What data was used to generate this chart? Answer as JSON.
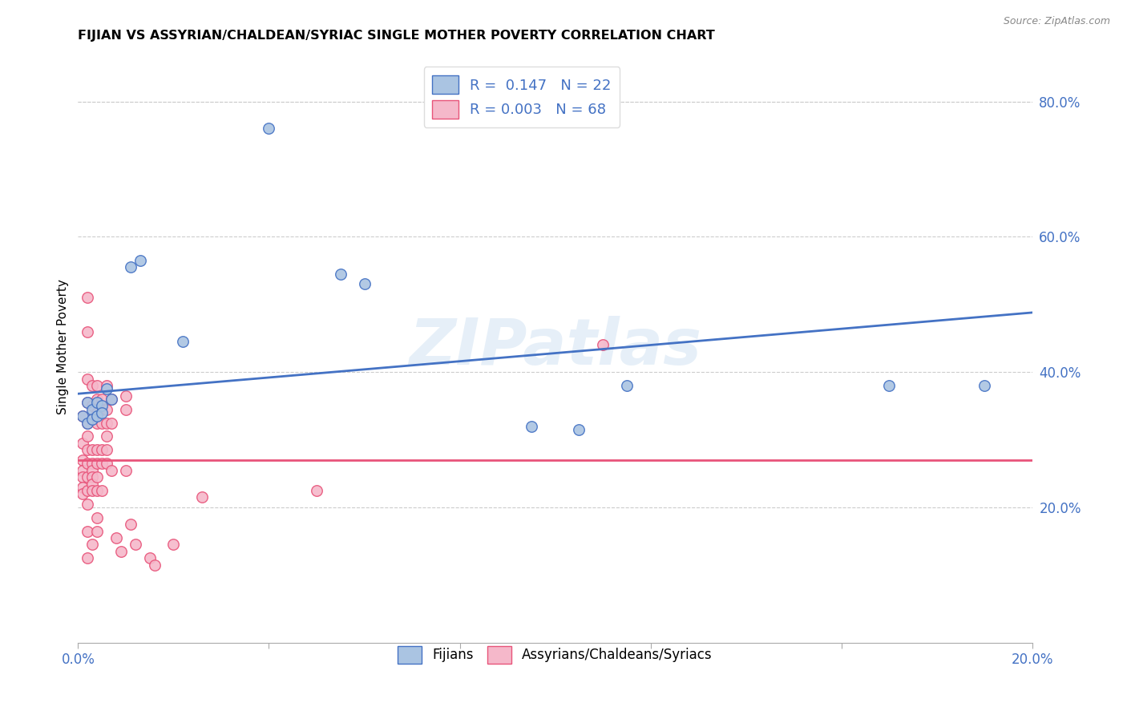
{
  "title": "FIJIAN VS ASSYRIAN/CHALDEAN/SYRIAC SINGLE MOTHER POVERTY CORRELATION CHART",
  "source": "Source: ZipAtlas.com",
  "ylabel": "Single Mother Poverty",
  "y_ticks_right": [
    "20.0%",
    "40.0%",
    "60.0%",
    "80.0%"
  ],
  "legend_fijian": "Fijians",
  "legend_assyrian": "Assyrians/Chaldeans/Syriacs",
  "fijian_R": "0.147",
  "fijian_N": "22",
  "assyrian_R": "0.003",
  "assyrian_N": "68",
  "fijian_color": "#aac4e2",
  "assyrian_color": "#f5b8ca",
  "fijian_line_color": "#4472c4",
  "assyrian_line_color": "#e8547a",
  "watermark": "ZIPatlas",
  "fijian_points": [
    [
      0.001,
      0.335
    ],
    [
      0.002,
      0.355
    ],
    [
      0.002,
      0.325
    ],
    [
      0.003,
      0.345
    ],
    [
      0.003,
      0.33
    ],
    [
      0.004,
      0.355
    ],
    [
      0.004,
      0.335
    ],
    [
      0.005,
      0.35
    ],
    [
      0.005,
      0.34
    ],
    [
      0.006,
      0.375
    ],
    [
      0.007,
      0.36
    ],
    [
      0.011,
      0.555
    ],
    [
      0.013,
      0.565
    ],
    [
      0.022,
      0.445
    ],
    [
      0.04,
      0.76
    ],
    [
      0.055,
      0.545
    ],
    [
      0.06,
      0.53
    ],
    [
      0.095,
      0.32
    ],
    [
      0.105,
      0.315
    ],
    [
      0.115,
      0.38
    ],
    [
      0.17,
      0.38
    ],
    [
      0.19,
      0.38
    ]
  ],
  "assyrian_points": [
    [
      0.001,
      0.335
    ],
    [
      0.001,
      0.295
    ],
    [
      0.001,
      0.27
    ],
    [
      0.001,
      0.255
    ],
    [
      0.001,
      0.245
    ],
    [
      0.001,
      0.23
    ],
    [
      0.001,
      0.22
    ],
    [
      0.002,
      0.51
    ],
    [
      0.002,
      0.46
    ],
    [
      0.002,
      0.39
    ],
    [
      0.002,
      0.355
    ],
    [
      0.002,
      0.325
    ],
    [
      0.002,
      0.305
    ],
    [
      0.002,
      0.285
    ],
    [
      0.002,
      0.265
    ],
    [
      0.002,
      0.245
    ],
    [
      0.002,
      0.225
    ],
    [
      0.002,
      0.205
    ],
    [
      0.002,
      0.165
    ],
    [
      0.002,
      0.125
    ],
    [
      0.003,
      0.38
    ],
    [
      0.003,
      0.35
    ],
    [
      0.003,
      0.33
    ],
    [
      0.003,
      0.285
    ],
    [
      0.003,
      0.265
    ],
    [
      0.003,
      0.255
    ],
    [
      0.003,
      0.245
    ],
    [
      0.003,
      0.235
    ],
    [
      0.003,
      0.225
    ],
    [
      0.003,
      0.145
    ],
    [
      0.004,
      0.38
    ],
    [
      0.004,
      0.36
    ],
    [
      0.004,
      0.34
    ],
    [
      0.004,
      0.325
    ],
    [
      0.004,
      0.285
    ],
    [
      0.004,
      0.265
    ],
    [
      0.004,
      0.245
    ],
    [
      0.004,
      0.225
    ],
    [
      0.004,
      0.185
    ],
    [
      0.004,
      0.165
    ],
    [
      0.005,
      0.36
    ],
    [
      0.005,
      0.345
    ],
    [
      0.005,
      0.325
    ],
    [
      0.005,
      0.285
    ],
    [
      0.005,
      0.265
    ],
    [
      0.005,
      0.225
    ],
    [
      0.006,
      0.38
    ],
    [
      0.006,
      0.345
    ],
    [
      0.006,
      0.325
    ],
    [
      0.006,
      0.305
    ],
    [
      0.006,
      0.285
    ],
    [
      0.006,
      0.265
    ],
    [
      0.007,
      0.36
    ],
    [
      0.007,
      0.325
    ],
    [
      0.007,
      0.255
    ],
    [
      0.008,
      0.155
    ],
    [
      0.009,
      0.135
    ],
    [
      0.01,
      0.365
    ],
    [
      0.01,
      0.345
    ],
    [
      0.01,
      0.255
    ],
    [
      0.011,
      0.175
    ],
    [
      0.012,
      0.145
    ],
    [
      0.015,
      0.125
    ],
    [
      0.016,
      0.115
    ],
    [
      0.02,
      0.145
    ],
    [
      0.026,
      0.215
    ],
    [
      0.05,
      0.225
    ],
    [
      0.11,
      0.44
    ]
  ],
  "xlim": [
    0.0,
    0.2
  ],
  "ylim": [
    0.0,
    0.875
  ],
  "fijian_trend_x": [
    0.0,
    0.2
  ],
  "fijian_trend_y": [
    0.368,
    0.488
  ],
  "assyrian_trend_x": [
    0.0,
    0.2
  ],
  "assyrian_trend_y": [
    0.27,
    0.27
  ]
}
